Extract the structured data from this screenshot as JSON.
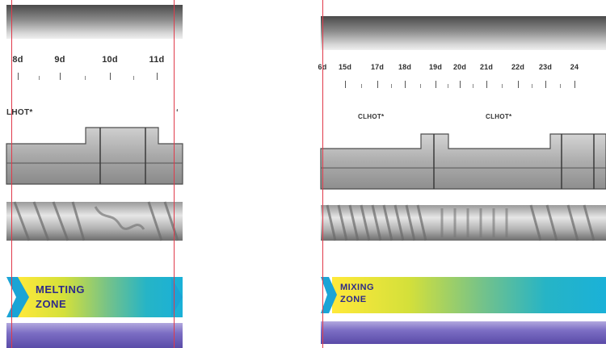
{
  "left_panel": {
    "ticks": [
      "8d",
      "9d",
      "10d",
      "11d"
    ],
    "element_labels": [
      "LHOT*",
      "‘"
    ],
    "zone": {
      "line1": "MELTING",
      "line2": "ZONE"
    }
  },
  "right_panel": {
    "ticks": [
      "6d",
      "15d",
      "17d",
      "18d",
      "19d",
      "20d",
      "21d",
      "22d",
      "23d",
      "24"
    ],
    "element_labels": [
      "CLHOT*",
      "CLHOT*"
    ],
    "zone": {
      "line1": "MIXING",
      "line2": "ZONE"
    }
  },
  "colors": {
    "boundary_line": "#e03a4a",
    "zone_start": "#ffe93a",
    "zone_end": "#1ab1d8",
    "zone_text": "#2d2a8a",
    "base_bar": "#6a5cb8"
  }
}
